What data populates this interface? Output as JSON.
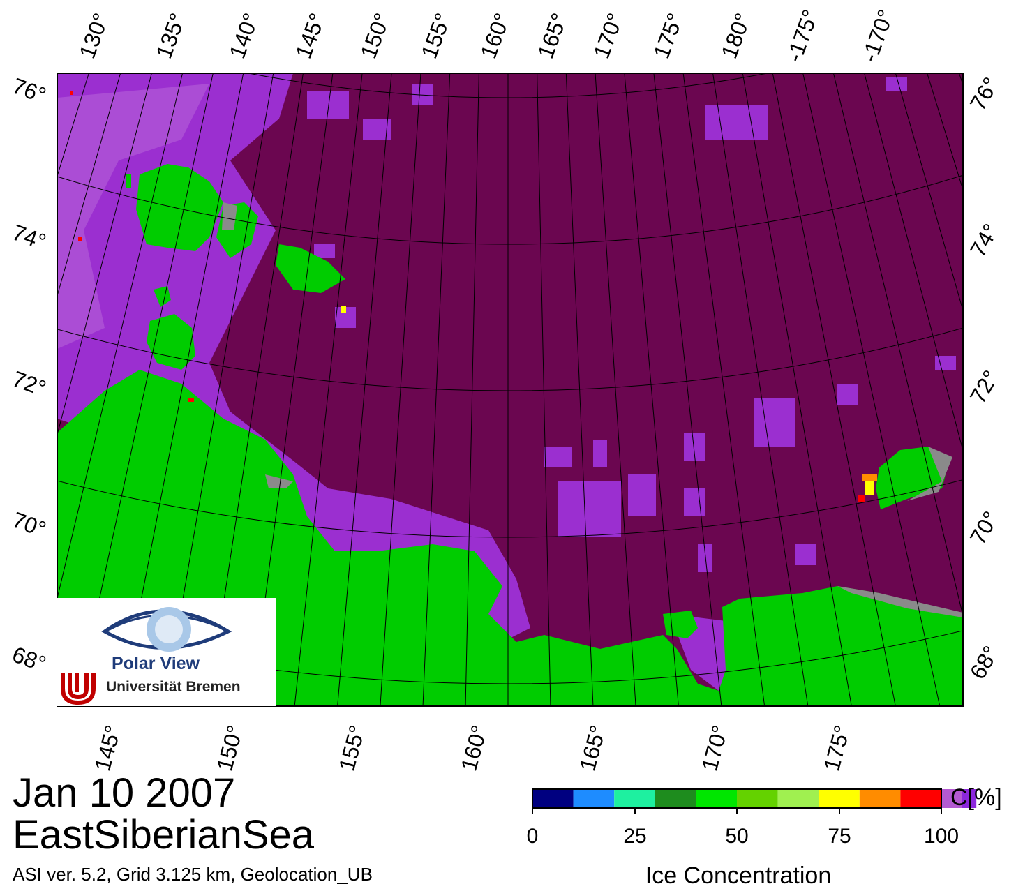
{
  "map": {
    "date": "Jan 10 2007",
    "region": "EastSiberianSea",
    "info": "ASI ver. 5.2,  Grid 3.125 km, Geolocation_UB",
    "top_lon_labels": [
      "130°",
      "135°",
      "140°",
      "145°",
      "150°",
      "155°",
      "160°",
      "165°",
      "170°",
      "175°",
      "180°",
      "-175°",
      "-170°"
    ],
    "bottom_lon_labels": [
      "145°",
      "150°",
      "155°",
      "160°",
      "165°",
      "170°",
      "175°"
    ],
    "left_lat_labels": [
      "76°",
      "74°",
      "72°",
      "70°",
      "68°"
    ],
    "right_lat_labels": [
      "76°",
      "74°",
      "72°",
      "70°",
      "68°"
    ],
    "colors": {
      "ice_full": "#6b0650",
      "ice_high": "#9b2fd0",
      "ice_mid": "#b866d8",
      "land": "#00cc00",
      "coast_gray": "#8a8a8a"
    }
  },
  "colorbar": {
    "title": "Ice Concentration",
    "unit": "C[%]",
    "ticks": [
      "0",
      "25",
      "50",
      "75",
      "100"
    ],
    "colors": [
      "#000080",
      "#1e8cff",
      "#1ef0a0",
      "#1e8c1e",
      "#00e600",
      "#64d200",
      "#a0f050",
      "#ffff00",
      "#ff8c00",
      "#ff0000",
      "#b45ad2",
      "#8c28dc",
      "#ffffff"
    ]
  },
  "logo": {
    "name": "Polar View",
    "institution": "Universität Bremen"
  }
}
